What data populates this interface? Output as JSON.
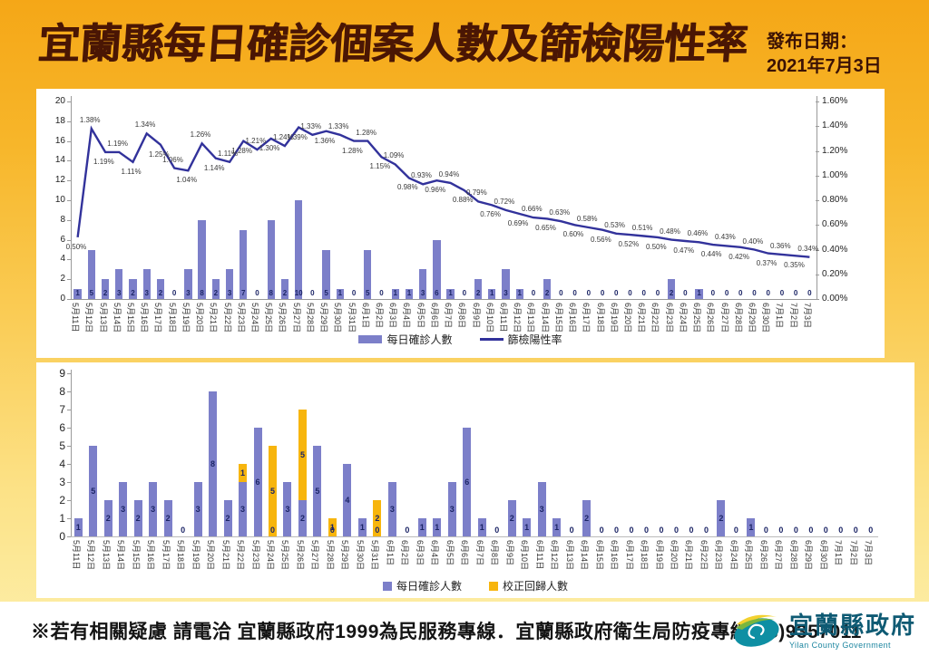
{
  "header": {
    "title": "宜蘭縣每日確診個案人數及篩檢陽性率",
    "publish_label": "發布日期：",
    "publish_date": "2021年7月3日"
  },
  "footer": {
    "notice": "※若有相關疑慮 請電洽  宜蘭縣政府1999為民服務專線．宜蘭縣政府衛生局防疫專線(03)9357011",
    "org_name": "宜蘭縣政府",
    "org_name_en": "Yilan County Government"
  },
  "colors": {
    "background_gold": "#F5A717",
    "title_brown": "#4A1604",
    "bar_purple": "#7C7FC9",
    "line_indigo": "#32329B",
    "bar_yellow": "#F7B50D"
  },
  "chart_data": [
    {
      "type": "bar",
      "subtype": "bar-with-line-overlay",
      "categories": [
        "5月11日",
        "5月12日",
        "5月13日",
        "5月14日",
        "5月15日",
        "5月16日",
        "5月17日",
        "5月18日",
        "5月19日",
        "5月20日",
        "5月21日",
        "5月22日",
        "5月23日",
        "5月24日",
        "5月25日",
        "5月26日",
        "5月27日",
        "5月28日",
        "5月29日",
        "5月30日",
        "5月31日",
        "6月1日",
        "6月2日",
        "6月3日",
        "6月4日",
        "6月5日",
        "6月6日",
        "6月7日",
        "6月8日",
        "6月9日",
        "6月10日",
        "6月11日",
        "6月12日",
        "6月13日",
        "6月14日",
        "6月15日",
        "6月16日",
        "6月17日",
        "6月18日",
        "6月19日",
        "6月20日",
        "6月21日",
        "6月22日",
        "6月23日",
        "6月24日",
        "6月25日",
        "6月26日",
        "6月27日",
        "6月28日",
        "6月29日",
        "6月30日",
        "7月1日",
        "7月2日",
        "7月3日"
      ],
      "series": [
        {
          "name": "每日確診人數",
          "type": "bar",
          "color": "#7C7FC9",
          "values": [
            1,
            5,
            2,
            3,
            2,
            3,
            2,
            0,
            3,
            8,
            2,
            3,
            7,
            0,
            8,
            2,
            10,
            0,
            5,
            1,
            0,
            5,
            0,
            1,
            1,
            3,
            6,
            1,
            0,
            2,
            1,
            3,
            1,
            0,
            2,
            0,
            0,
            0,
            0,
            0,
            0,
            0,
            0,
            2,
            0,
            1,
            0,
            0,
            0,
            0,
            0,
            0,
            0,
            0
          ]
        },
        {
          "name": "篩檢陽性率",
          "type": "line",
          "color": "#32329B",
          "unit": "%",
          "values": [
            0.5,
            1.38,
            1.19,
            1.19,
            1.11,
            1.34,
            1.25,
            1.06,
            1.04,
            1.26,
            1.14,
            1.11,
            1.28,
            1.21,
            1.3,
            1.24,
            1.39,
            1.33,
            1.36,
            1.33,
            1.28,
            1.28,
            1.15,
            1.09,
            0.98,
            0.93,
            0.96,
            0.94,
            0.88,
            0.79,
            0.76,
            0.72,
            0.69,
            0.66,
            0.65,
            0.63,
            0.6,
            0.58,
            0.56,
            0.53,
            0.52,
            0.51,
            0.5,
            0.48,
            0.47,
            0.46,
            0.44,
            0.43,
            0.42,
            0.4,
            0.37,
            0.36,
            0.35,
            0.34
          ]
        }
      ],
      "left_axis": {
        "min": 0,
        "max": 20,
        "step": 2
      },
      "right_axis": {
        "min": 0,
        "max": 1.6,
        "step": 0.2,
        "format": "percent"
      },
      "legend_position": "bottom",
      "grid": false
    },
    {
      "type": "bar",
      "subtype": "stacked-bar",
      "categories": [
        "5月11日",
        "5月12日",
        "5月13日",
        "5月14日",
        "5月15日",
        "5月16日",
        "5月17日",
        "5月18日",
        "5月19日",
        "5月20日",
        "5月21日",
        "5月22日",
        "5月23日",
        "5月24日",
        "5月25日",
        "5月26日",
        "5月27日",
        "5月28日",
        "5月29日",
        "5月30日",
        "5月31日",
        "6月1日",
        "6月2日",
        "6月3日",
        "6月4日",
        "6月5日",
        "6月6日",
        "6月7日",
        "6月8日",
        "6月9日",
        "6月10日",
        "6月11日",
        "6月12日",
        "6月13日",
        "6月14日",
        "6月15日",
        "6月16日",
        "6月17日",
        "6月18日",
        "6月19日",
        "6月20日",
        "6月21日",
        "6月22日",
        "6月23日",
        "6月24日",
        "6月25日",
        "6月26日",
        "6月27日",
        "6月28日",
        "6月29日",
        "6月30日",
        "7月1日",
        "7月2日",
        "7月3日"
      ],
      "series": [
        {
          "name": "每日確診人數",
          "color": "#7C7FC9",
          "values": [
            1,
            5,
            2,
            3,
            2,
            3,
            2,
            0,
            3,
            8,
            2,
            3,
            6,
            0,
            3,
            2,
            5,
            0,
            4,
            1,
            0,
            3,
            0,
            1,
            1,
            3,
            6,
            1,
            0,
            2,
            1,
            3,
            1,
            0,
            2,
            0,
            0,
            0,
            0,
            0,
            0,
            0,
            0,
            2,
            0,
            1,
            0,
            0,
            0,
            0,
            0,
            0,
            0,
            0
          ]
        },
        {
          "name": "校正回歸人數",
          "color": "#F7B50D",
          "values": [
            0,
            0,
            0,
            0,
            0,
            0,
            0,
            0,
            0,
            0,
            0,
            1,
            0,
            5,
            0,
            5,
            0,
            1,
            0,
            0,
            2,
            0,
            0,
            0,
            0,
            0,
            0,
            0,
            0,
            0,
            0,
            0,
            0,
            0,
            0,
            0,
            0,
            0,
            0,
            0,
            0,
            0,
            0,
            0,
            0,
            0,
            0,
            0,
            0,
            0,
            0,
            0,
            0,
            0
          ]
        }
      ],
      "left_axis": {
        "min": 0,
        "max": 9,
        "step": 1
      },
      "legend_position": "bottom",
      "grid": false
    }
  ]
}
